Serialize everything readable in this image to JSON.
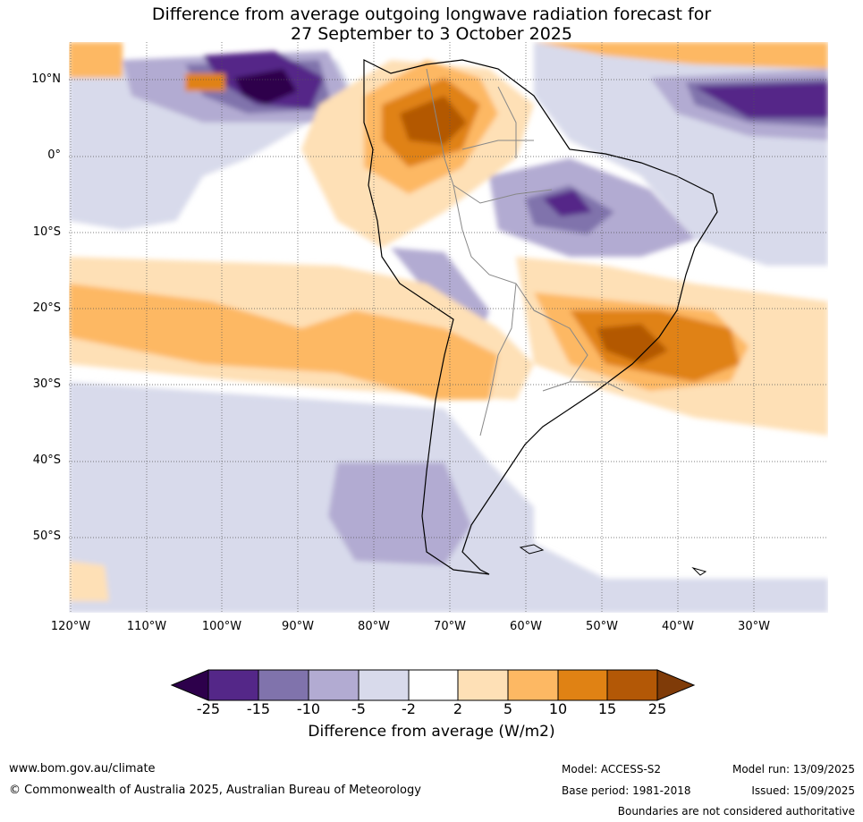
{
  "title": {
    "line1": "Difference from average outgoing longwave radiation forecast for",
    "line2": "27 September to 3 October 2025"
  },
  "map": {
    "lat_labels": [
      "10°N",
      "0°",
      "10°S",
      "20°S",
      "30°S",
      "40°S",
      "50°S"
    ],
    "lon_labels": [
      "120°W",
      "110°W",
      "100°W",
      "90°W",
      "80°W",
      "70°W",
      "60°W",
      "50°W",
      "40°W",
      "30°W"
    ]
  },
  "colorbar": {
    "tick_labels": [
      "-25",
      "-15",
      "-10",
      "-5",
      "-2",
      "2",
      "5",
      "10",
      "15",
      "25"
    ],
    "colors": [
      "#2d004b",
      "#542788",
      "#8073ac",
      "#b2abd2",
      "#d8daeb",
      "#ffffff",
      "#fee0b6",
      "#fdb863",
      "#e08214",
      "#b35806",
      "#7f3b08"
    ],
    "title": "Difference from average (W/m2)"
  },
  "footer": {
    "website": "www.bom.gov.au/climate",
    "copyright": "© Commonwealth of Australia 2025, Australian Bureau of Meteorology",
    "model": "Model: ACCESS-S2",
    "base_period": "Base period: 1981-2018",
    "model_run": "Model run: 13/09/2025",
    "issued": "Issued: 15/09/2025",
    "disclaimer": "Boundaries are not considered authoritative"
  }
}
